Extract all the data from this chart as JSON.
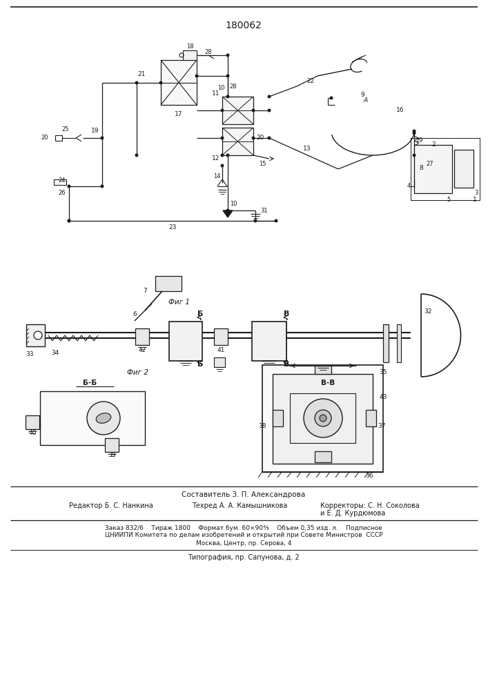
{
  "patent_number": "180062",
  "fig1_caption": "Фиг 1",
  "fig2_caption": "Фиг 2",
  "sestavitel": "Составитель З. П. Александрова",
  "redaktor": "Редактор Б. С. Нанкина",
  "tehred": "Техред А. А. Камышникова",
  "korrektory": "Корректоры: С. Н. Соколова",
  "korrektory2": "и Е. Д. Курдюмова",
  "zakaz": "Заказ 832/6    Тираж 1800    Формат бум. 60×90⅘    Объем 0,35 изд. л.    Подписное",
  "tsniipi": "ЦНИИПИ Комитета по делам изобретений и открытий при Совете Министров  СССР",
  "moskva": "Москва, Центр, пр. Серова, 4",
  "tipografia": "Типография, пр. Сапунова, д. 2",
  "bg_color": "#ffffff",
  "line_color": "#1a1a1a",
  "text_color": "#1a1a1a"
}
